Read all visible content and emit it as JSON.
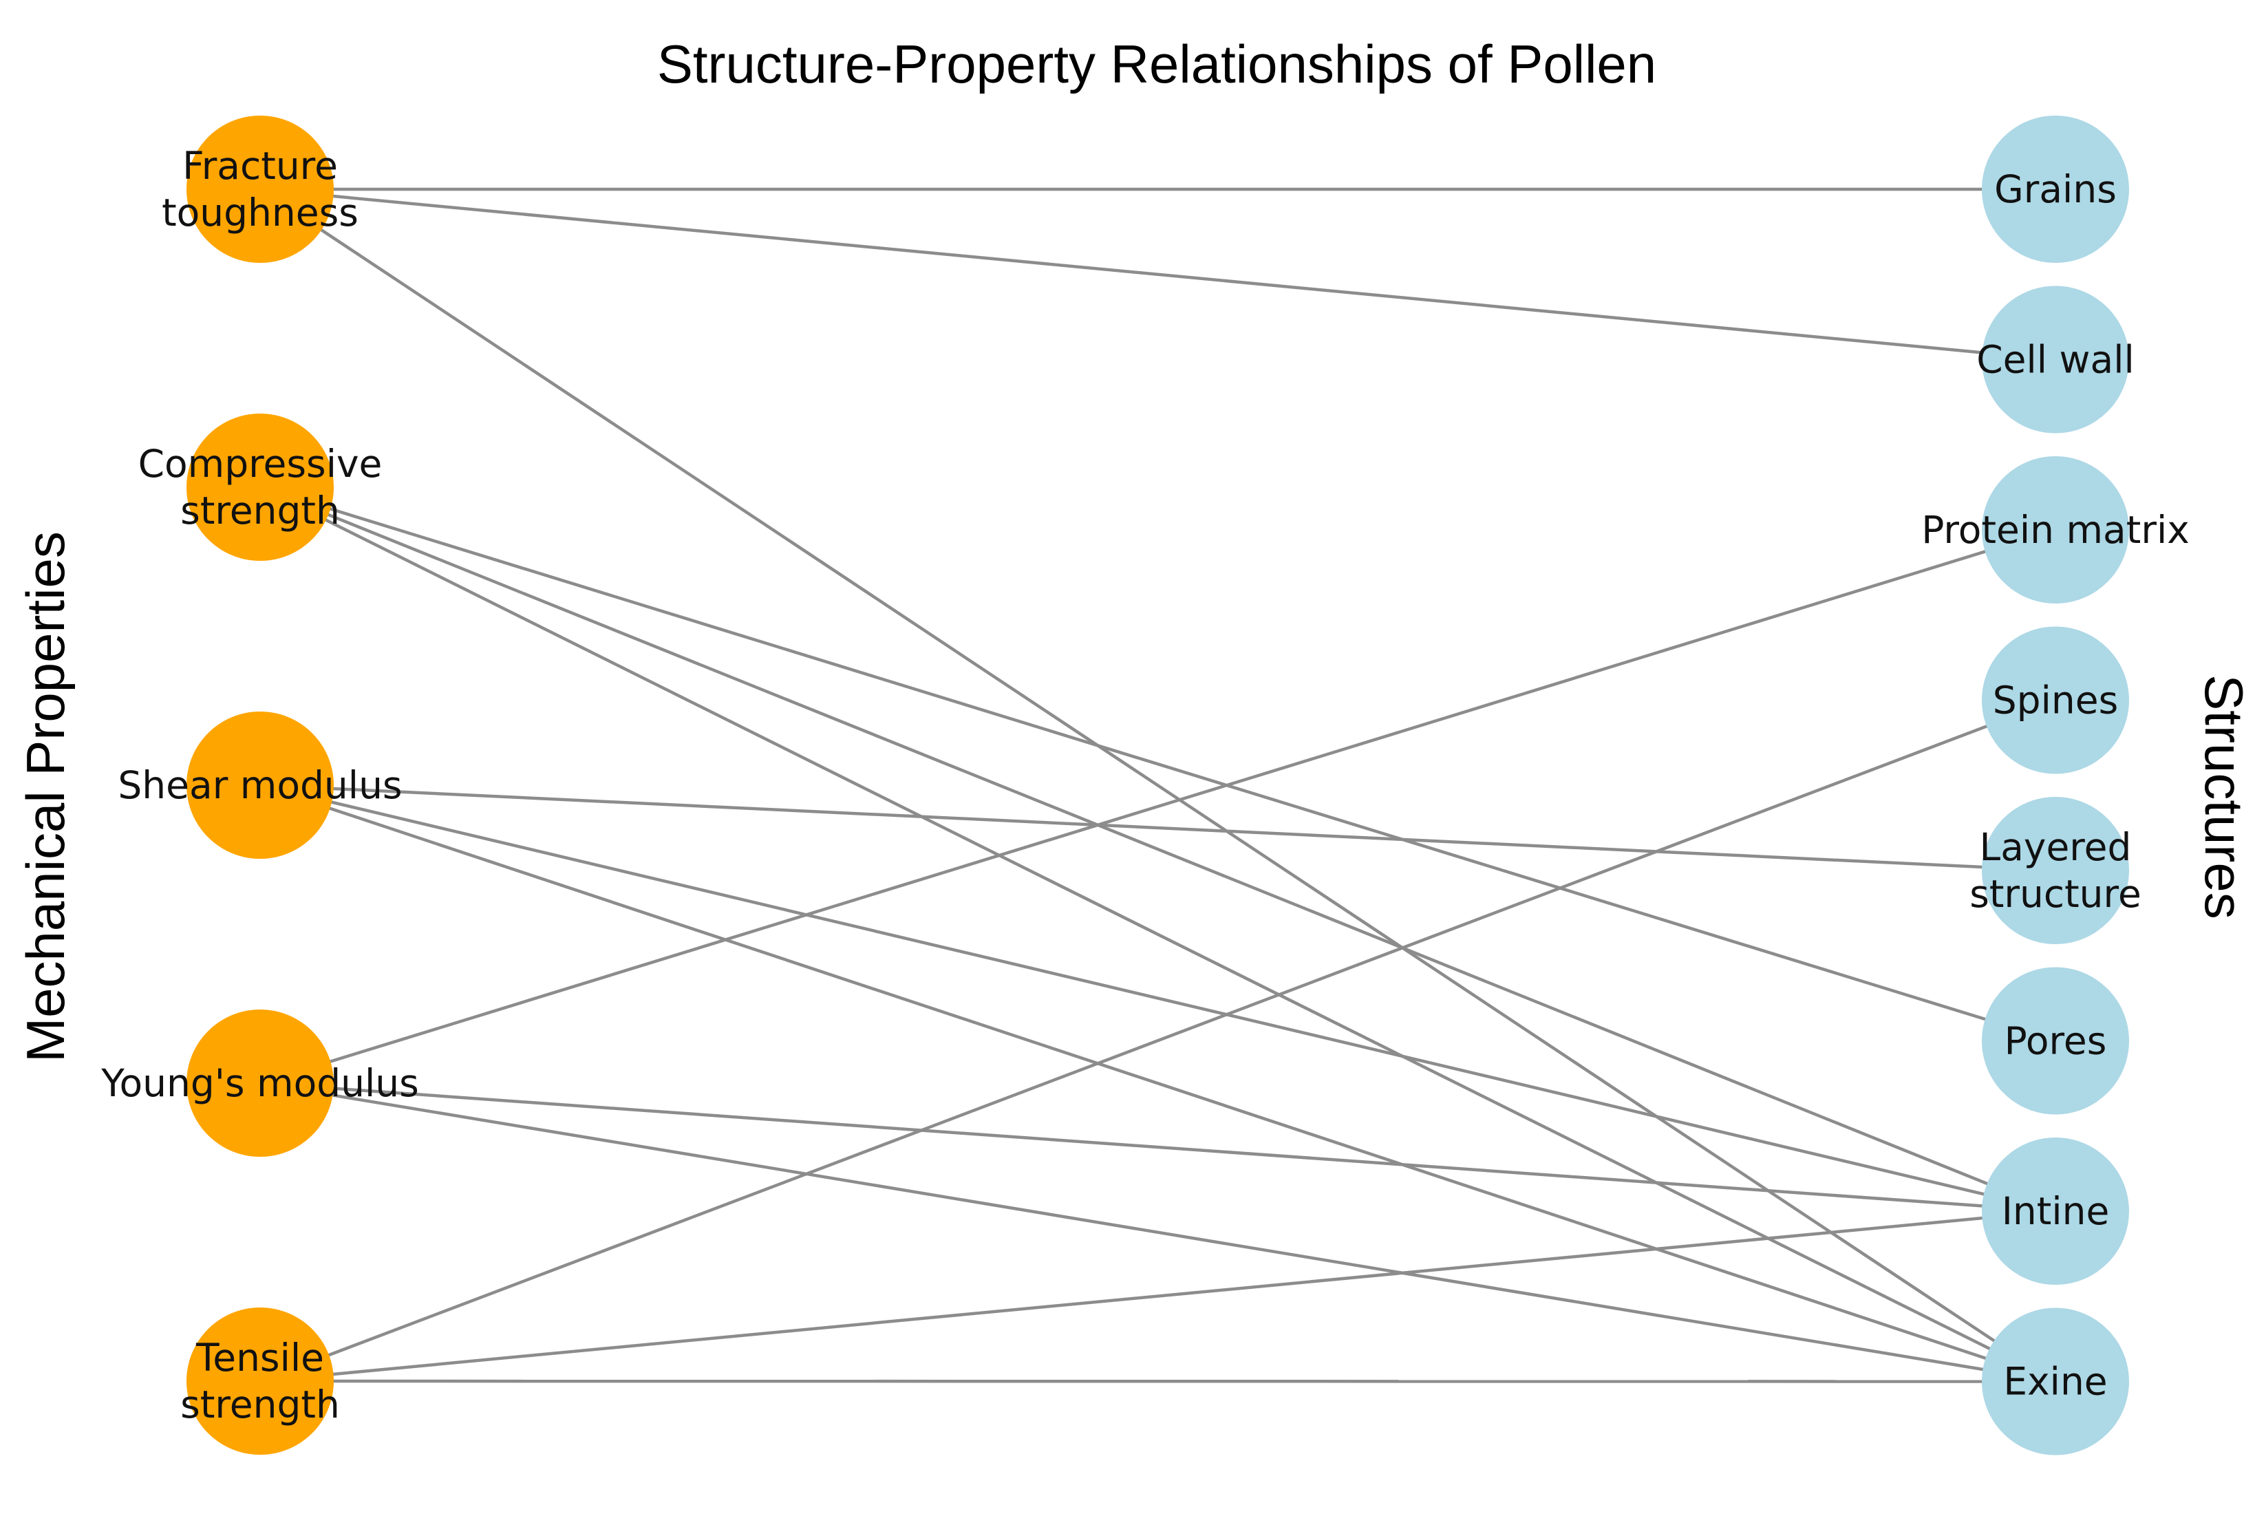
{
  "title": "Structure-Property Relationships of Pollen",
  "left_axis_label": "Mechanical Properties",
  "right_axis_label": "Structures",
  "colors": {
    "property_node": "#ffa500",
    "structure_node": "#add8e6",
    "edge": "#8c8c8c"
  },
  "properties": [
    {
      "id": "fracture",
      "lines": [
        "Fracture",
        "toughness"
      ]
    },
    {
      "id": "compressive",
      "lines": [
        "Compressive",
        "strength"
      ]
    },
    {
      "id": "shear",
      "lines": [
        "Shear modulus"
      ]
    },
    {
      "id": "youngs",
      "lines": [
        "Young's modulus"
      ]
    },
    {
      "id": "tensile",
      "lines": [
        "Tensile",
        "strength"
      ]
    }
  ],
  "structures": [
    {
      "id": "grains",
      "lines": [
        "Grains"
      ]
    },
    {
      "id": "cellwall",
      "lines": [
        "Cell wall"
      ]
    },
    {
      "id": "protein",
      "lines": [
        "Protein matrix"
      ]
    },
    {
      "id": "spines",
      "lines": [
        "Spines"
      ]
    },
    {
      "id": "layered",
      "lines": [
        "Layered",
        "structure"
      ]
    },
    {
      "id": "pores",
      "lines": [
        "Pores"
      ]
    },
    {
      "id": "intine",
      "lines": [
        "Intine"
      ]
    },
    {
      "id": "exine",
      "lines": [
        "Exine"
      ]
    }
  ],
  "edges": [
    [
      "fracture",
      "grains"
    ],
    [
      "fracture",
      "cellwall"
    ],
    [
      "fracture",
      "exine"
    ],
    [
      "compressive",
      "pores"
    ],
    [
      "compressive",
      "intine"
    ],
    [
      "compressive",
      "exine"
    ],
    [
      "shear",
      "layered"
    ],
    [
      "shear",
      "intine"
    ],
    [
      "shear",
      "exine"
    ],
    [
      "youngs",
      "protein"
    ],
    [
      "youngs",
      "intine"
    ],
    [
      "youngs",
      "exine"
    ],
    [
      "tensile",
      "spines"
    ],
    [
      "tensile",
      "intine"
    ],
    [
      "tensile",
      "exine"
    ]
  ]
}
